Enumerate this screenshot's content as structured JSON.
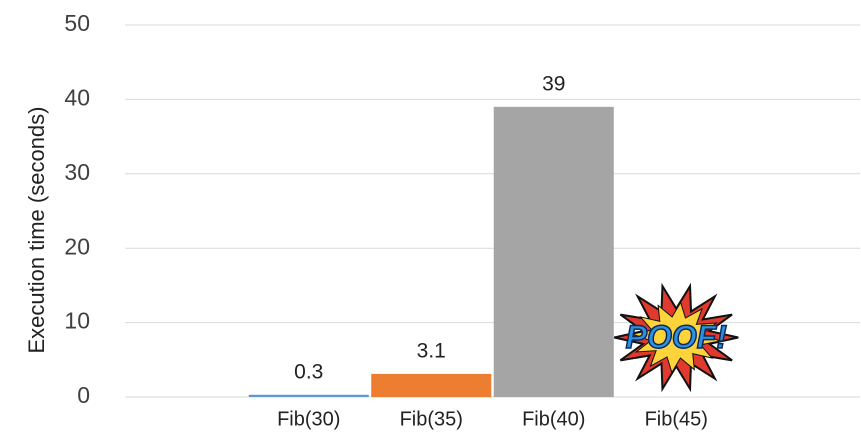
{
  "chart_data": {
    "type": "bar",
    "ylabel": "Execution time (seconds)",
    "categories": [
      null,
      "Fib(30)",
      "Fib(35)",
      "Fib(40)",
      "Fib(45)",
      null
    ],
    "values": [
      null,
      0.3,
      3.1,
      39,
      null,
      null
    ],
    "colors": [
      null,
      "#5b9bd5",
      "#ed7d31",
      "#a5a5a5",
      null,
      null
    ],
    "ylim": [
      0,
      50
    ],
    "yticks": [
      0,
      10,
      20,
      30,
      40,
      50
    ],
    "grid": true,
    "annotation": "POOF!"
  }
}
